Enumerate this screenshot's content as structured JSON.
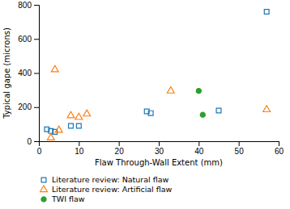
{
  "chart_data": {
    "type": "scatter",
    "xlabel": "Flaw Through-Wall Extent (mm)",
    "ylabel": "Typical gape (microns)",
    "xlim": [
      0,
      60
    ],
    "xticks": [
      0,
      10,
      20,
      30,
      40,
      50,
      60
    ],
    "ylim": [
      0,
      800
    ],
    "yticks": [
      0,
      200,
      400,
      600,
      800
    ],
    "grid": false,
    "legend": "bottom",
    "series": [
      {
        "name": "Literature review: Natural flaw",
        "marker": "square",
        "x": [
          2,
          3,
          4,
          8,
          10,
          27,
          28,
          45,
          57
        ],
        "values": [
          70,
          60,
          55,
          90,
          90,
          175,
          165,
          180,
          760
        ]
      },
      {
        "name": "Literature review: Artificial flaw",
        "marker": "triangle",
        "x": [
          3,
          4,
          5,
          8,
          10,
          12,
          33,
          57
        ],
        "values": [
          20,
          420,
          65,
          150,
          140,
          160,
          295,
          185
        ]
      },
      {
        "name": "TWI flaw",
        "marker": "circle",
        "x": [
          40,
          41
        ],
        "values": [
          295,
          155
        ]
      }
    ]
  }
}
